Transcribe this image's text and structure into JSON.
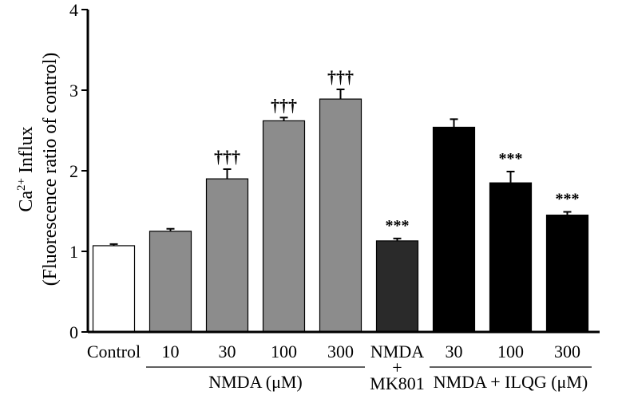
{
  "chart_data": {
    "type": "bar",
    "title": "",
    "ylabel_line1_prefix": "Ca",
    "ylabel_line1_sup": "2+",
    "ylabel_line1_suffix": " Influx",
    "ylabel_line2": "(Fluorescence ratio of control)",
    "ylim": [
      0,
      4
    ],
    "yticks": [
      "0",
      "1",
      "2",
      "3",
      "4"
    ],
    "categories": [
      "Control",
      "10",
      "30",
      "100",
      "300",
      "NMDA + MK801",
      "30",
      "100",
      "300"
    ],
    "category_labels": [
      [
        "Control"
      ],
      [
        "10"
      ],
      [
        "30"
      ],
      [
        "100"
      ],
      [
        "300"
      ],
      [
        "NMDA",
        "+",
        "MK801"
      ],
      [
        "30"
      ],
      [
        "100"
      ],
      [
        "300"
      ]
    ],
    "values": [
      1.07,
      1.25,
      1.9,
      2.62,
      2.89,
      1.13,
      2.54,
      1.85,
      1.45
    ],
    "errors": [
      0.02,
      0.03,
      0.12,
      0.04,
      0.12,
      0.03,
      0.1,
      0.14,
      0.04
    ],
    "annotations": [
      "",
      "",
      "†††",
      "†††",
      "†††",
      "***",
      "",
      "***",
      "***"
    ],
    "colors": [
      "#ffffff",
      "#8c8c8c",
      "#8c8c8c",
      "#8c8c8c",
      "#8c8c8c",
      "#2a2a2a",
      "#000000",
      "#000000",
      "#000000"
    ],
    "groups": [
      {
        "label": "NMDA (μM)",
        "start": 1,
        "end": 4
      },
      {
        "label": "NMDA + ILQG (μM)",
        "start": 6,
        "end": 8
      }
    ]
  }
}
